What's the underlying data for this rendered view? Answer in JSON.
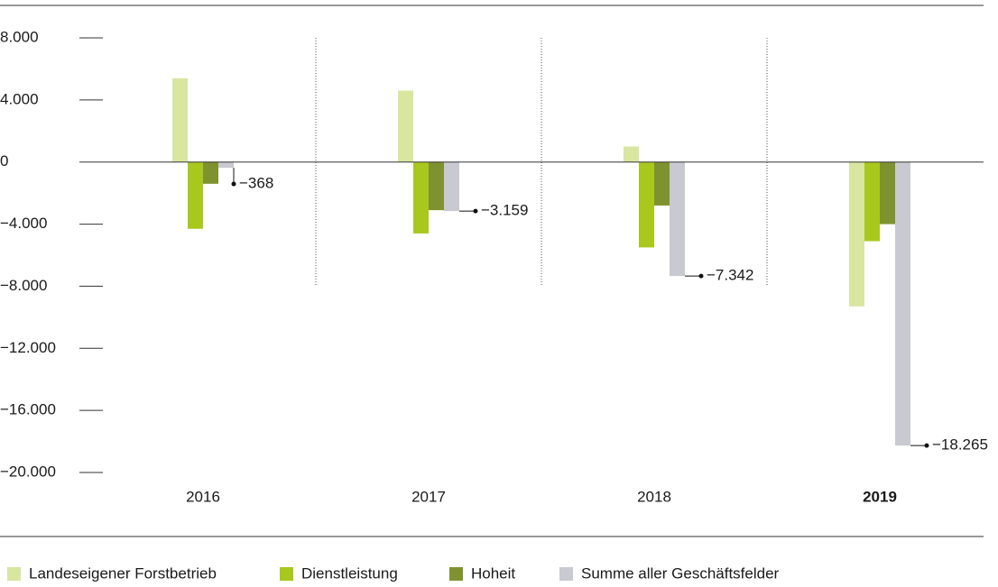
{
  "chart_data": {
    "type": "bar",
    "categories": [
      "2016",
      "2017",
      "2018",
      "2019"
    ],
    "highlight_index": 3,
    "series": [
      {
        "name": "Landeseigener Forstbetrieb",
        "color": "#d8e6a0",
        "values": [
          5400,
          4600,
          1000,
          -9300
        ]
      },
      {
        "name": "Dienstleistung",
        "color": "#a9c81e",
        "values": [
          -4300,
          -4600,
          -5500,
          -5100
        ]
      },
      {
        "name": "Hoheit",
        "color": "#7f9230",
        "values": [
          -1400,
          -3100,
          -2800,
          -4000
        ]
      },
      {
        "name": "Summe aller Geschäftsfelder",
        "color": "#c9c9d1",
        "values": [
          -368,
          -3159,
          -7342,
          -18265
        ],
        "value_labels": [
          "−368",
          "−3.159",
          "−7.342",
          "−18.265"
        ]
      }
    ],
    "ylim": [
      -20000,
      8000
    ],
    "yticks": [
      {
        "value": 8000,
        "label": "8.000"
      },
      {
        "value": 4000,
        "label": "4.000"
      },
      0,
      {
        "value": -4000,
        "label": "−4.000"
      },
      {
        "value": -8000,
        "label": "−8.000"
      },
      {
        "value": -12000,
        "label": "−12.000"
      },
      {
        "value": -16000,
        "label": "−16.000"
      },
      {
        "value": -20000,
        "label": "−20.000"
      }
    ]
  }
}
